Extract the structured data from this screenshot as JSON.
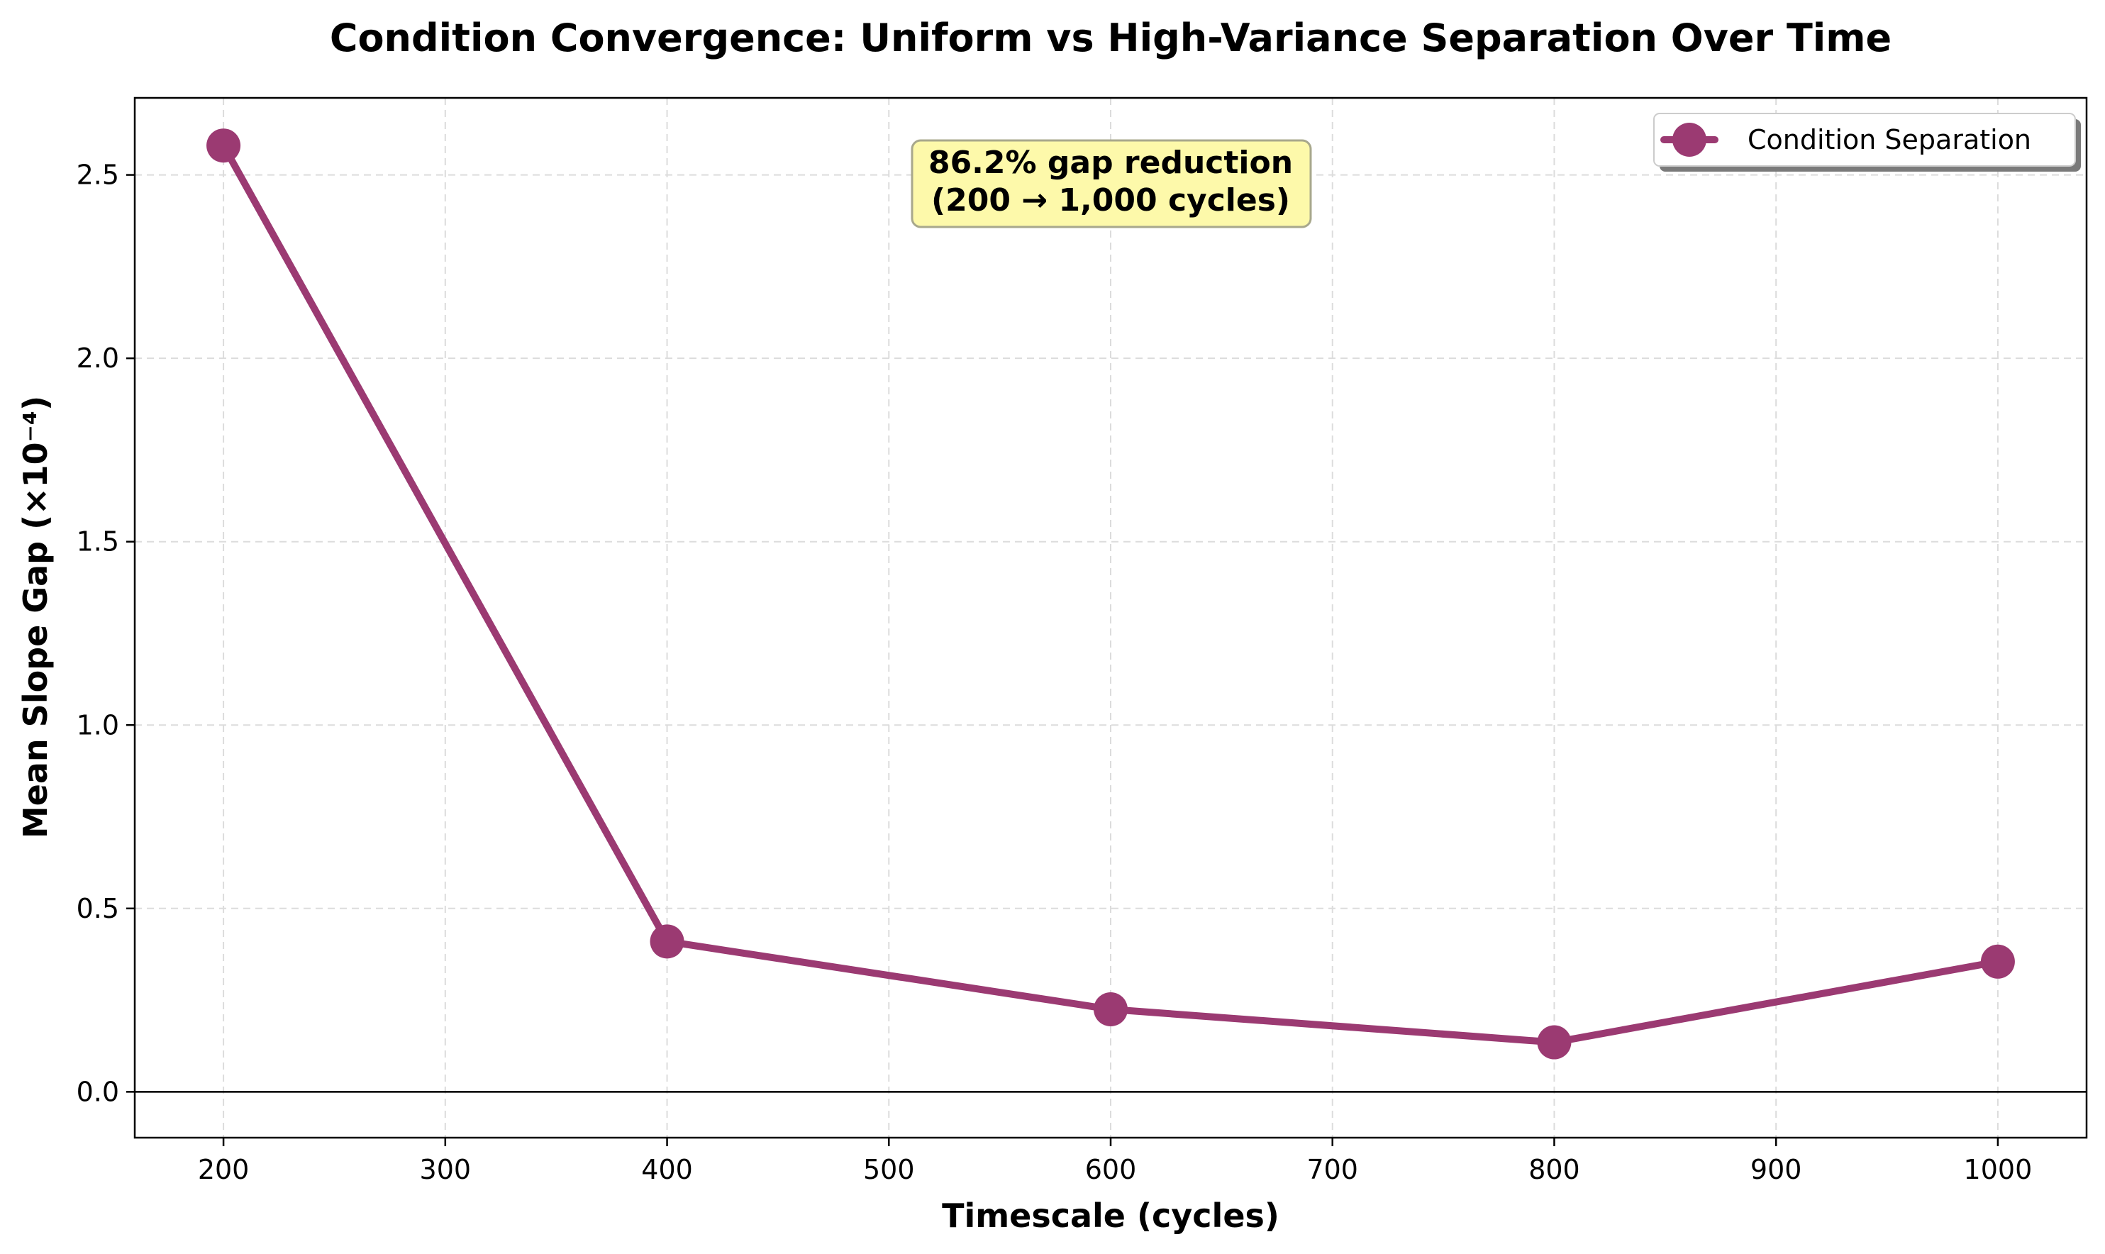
{
  "chart_data": {
    "type": "line",
    "title": "Condition Convergence: Uniform vs High-Variance Separation Over Time",
    "xlabel": "Timescale (cycles)",
    "ylabel": "Mean Slope Gap (×10⁻⁴)",
    "x": [
      200,
      400,
      600,
      800,
      1000
    ],
    "series": [
      {
        "name": "Condition Separation",
        "values": [
          2.58,
          0.41,
          0.225,
          0.135,
          0.355
        ],
        "color": "#9b3a72",
        "marker": "circle"
      }
    ],
    "xlim": [
      160,
      1040
    ],
    "ylim": [
      -0.125,
      2.71
    ],
    "xticks": [
      200,
      300,
      400,
      500,
      600,
      700,
      800,
      900,
      1000
    ],
    "xtick_labels": [
      "200",
      "300",
      "400",
      "500",
      "600",
      "700",
      "800",
      "900",
      "1000"
    ],
    "yticks": [
      0.0,
      0.5,
      1.0,
      1.5,
      2.0,
      2.5
    ],
    "ytick_labels": [
      "0.0",
      "0.5",
      "1.0",
      "1.5",
      "2.0",
      "2.5"
    ],
    "grid": true,
    "zero_line": true,
    "legend_position": "top-right",
    "annotation": {
      "lines": [
        "86.2% gap reduction",
        "(200 → 1,000 cycles)"
      ],
      "background": "#fdf9aa",
      "border": "#a8a88c"
    }
  }
}
